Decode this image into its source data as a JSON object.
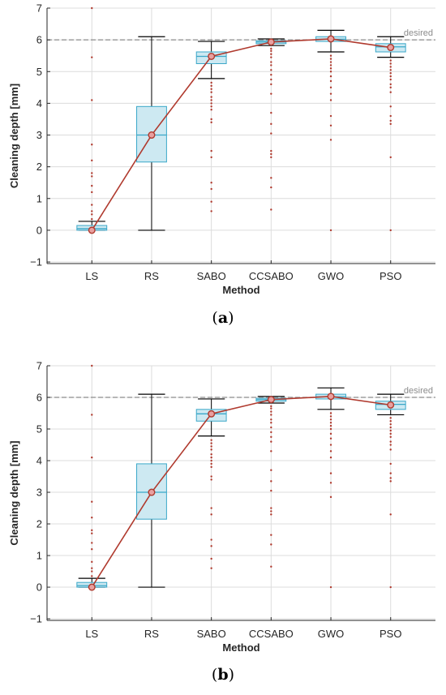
{
  "chart_data": [
    {
      "type": "box",
      "panel_label": "a",
      "xlabel": "Method",
      "ylabel": "Cleaning depth [mm]",
      "ylim": [
        -1.05,
        7
      ],
      "yticks": [
        -1,
        0,
        1,
        2,
        3,
        4,
        5,
        6,
        7
      ],
      "grid": true,
      "reference_line": {
        "y": 6,
        "label": "desired"
      },
      "categories": [
        "LS",
        "RS",
        "SABO",
        "CCSABO",
        "GWO",
        "PSO"
      ],
      "boxes": [
        {
          "whisker_low": 0.0,
          "q1": 0.0,
          "median": 0.05,
          "q3": 0.15,
          "whisker_high": 0.28,
          "mean": 0.0,
          "outliers": [
            0.35,
            0.5,
            0.6,
            0.8,
            1.2,
            1.4,
            1.7,
            1.8,
            2.2,
            2.7,
            4.1,
            5.45,
            7.0
          ]
        },
        {
          "whisker_low": 0.0,
          "q1": 2.15,
          "median": 3.0,
          "q3": 3.9,
          "whisker_high": 6.1,
          "mean": 3.0,
          "outliers": []
        },
        {
          "whisker_low": 4.78,
          "q1": 5.25,
          "median": 5.48,
          "q3": 5.62,
          "whisker_high": 5.95,
          "mean": 5.48,
          "outliers": [
            0.6,
            0.9,
            1.3,
            1.5,
            2.3,
            2.5,
            3.4,
            3.5,
            3.8,
            3.9,
            4.0,
            4.1,
            4.2,
            4.35,
            4.45,
            4.55,
            4.65
          ]
        },
        {
          "whisker_low": 5.82,
          "q1": 5.88,
          "median": 5.93,
          "q3": 5.97,
          "whisker_high": 6.03,
          "mean": 5.93,
          "outliers": [
            0.65,
            1.35,
            1.65,
            2.3,
            2.4,
            2.5,
            3.05,
            3.35,
            3.7,
            4.3,
            4.6,
            4.75,
            4.9,
            5.05,
            5.2,
            5.3,
            5.45,
            5.55,
            5.65,
            5.72
          ]
        },
        {
          "whisker_low": 5.62,
          "q1": 5.95,
          "median": 6.02,
          "q3": 6.1,
          "whisker_high": 6.3,
          "mean": 6.03,
          "outliers": [
            0.0,
            2.85,
            3.3,
            3.6,
            4.1,
            4.3,
            4.5,
            4.7,
            4.85,
            5.0,
            5.1,
            5.2,
            5.3,
            5.4,
            5.5
          ]
        },
        {
          "whisker_low": 5.45,
          "q1": 5.62,
          "median": 5.78,
          "q3": 5.88,
          "whisker_high": 6.1,
          "mean": 5.76,
          "outliers": [
            0.0,
            2.3,
            3.35,
            3.45,
            3.6,
            3.9,
            4.35,
            4.5,
            4.6,
            4.75,
            4.85,
            4.95,
            5.05,
            5.15,
            5.25,
            5.35
          ]
        }
      ]
    },
    {
      "type": "box",
      "panel_label": "b",
      "xlabel": "Method",
      "ylabel": "Cleaning depth [mm]",
      "ylim": [
        -1.05,
        7
      ],
      "yticks": [
        -1,
        0,
        1,
        2,
        3,
        4,
        5,
        6,
        7
      ],
      "grid": true,
      "reference_line": {
        "y": 6,
        "label": "desired"
      },
      "categories": [
        "LS",
        "RS",
        "SABO",
        "CCSABO",
        "GWO",
        "PSO"
      ],
      "boxes": [
        {
          "whisker_low": 0.0,
          "q1": 0.0,
          "median": 0.05,
          "q3": 0.15,
          "whisker_high": 0.28,
          "mean": 0.0,
          "outliers": [
            0.35,
            0.5,
            0.6,
            0.8,
            1.2,
            1.4,
            1.7,
            1.8,
            2.2,
            2.7,
            4.1,
            5.45,
            7.0
          ]
        },
        {
          "whisker_low": 0.0,
          "q1": 2.15,
          "median": 3.0,
          "q3": 3.9,
          "whisker_high": 6.1,
          "mean": 3.0,
          "outliers": []
        },
        {
          "whisker_low": 4.78,
          "q1": 5.25,
          "median": 5.48,
          "q3": 5.62,
          "whisker_high": 5.95,
          "mean": 5.48,
          "outliers": [
            0.6,
            0.9,
            1.3,
            1.5,
            2.3,
            2.5,
            3.4,
            3.5,
            3.8,
            3.9,
            4.0,
            4.1,
            4.2,
            4.35,
            4.45,
            4.55,
            4.65
          ]
        },
        {
          "whisker_low": 5.82,
          "q1": 5.88,
          "median": 5.93,
          "q3": 5.97,
          "whisker_high": 6.03,
          "mean": 5.93,
          "outliers": [
            0.65,
            1.35,
            1.65,
            2.3,
            2.4,
            2.5,
            3.05,
            3.35,
            3.7,
            4.3,
            4.6,
            4.75,
            4.9,
            5.05,
            5.2,
            5.3,
            5.45,
            5.55,
            5.65,
            5.72
          ]
        },
        {
          "whisker_low": 5.62,
          "q1": 5.95,
          "median": 6.02,
          "q3": 6.1,
          "whisker_high": 6.3,
          "mean": 6.03,
          "outliers": [
            0.0,
            2.85,
            3.3,
            3.6,
            4.1,
            4.3,
            4.5,
            4.7,
            4.85,
            5.0,
            5.1,
            5.2,
            5.3,
            5.4,
            5.5
          ]
        },
        {
          "whisker_low": 5.45,
          "q1": 5.62,
          "median": 5.78,
          "q3": 5.88,
          "whisker_high": 6.1,
          "mean": 5.76,
          "outliers": [
            0.0,
            2.3,
            3.35,
            3.45,
            3.6,
            3.9,
            4.35,
            4.5,
            4.6,
            4.75,
            4.85,
            4.95,
            5.05,
            5.15,
            5.25,
            5.35
          ]
        }
      ]
    }
  ],
  "colors": {
    "box_fill": "#cde9f2",
    "box_edge": "#3aa7c8",
    "median": "#3aa7c8",
    "whisker": "#000000",
    "mean_line": "#b03a2e",
    "outlier": "#b03a2e",
    "grid": "#dcdcdc",
    "reference": "#8c8c8c"
  }
}
